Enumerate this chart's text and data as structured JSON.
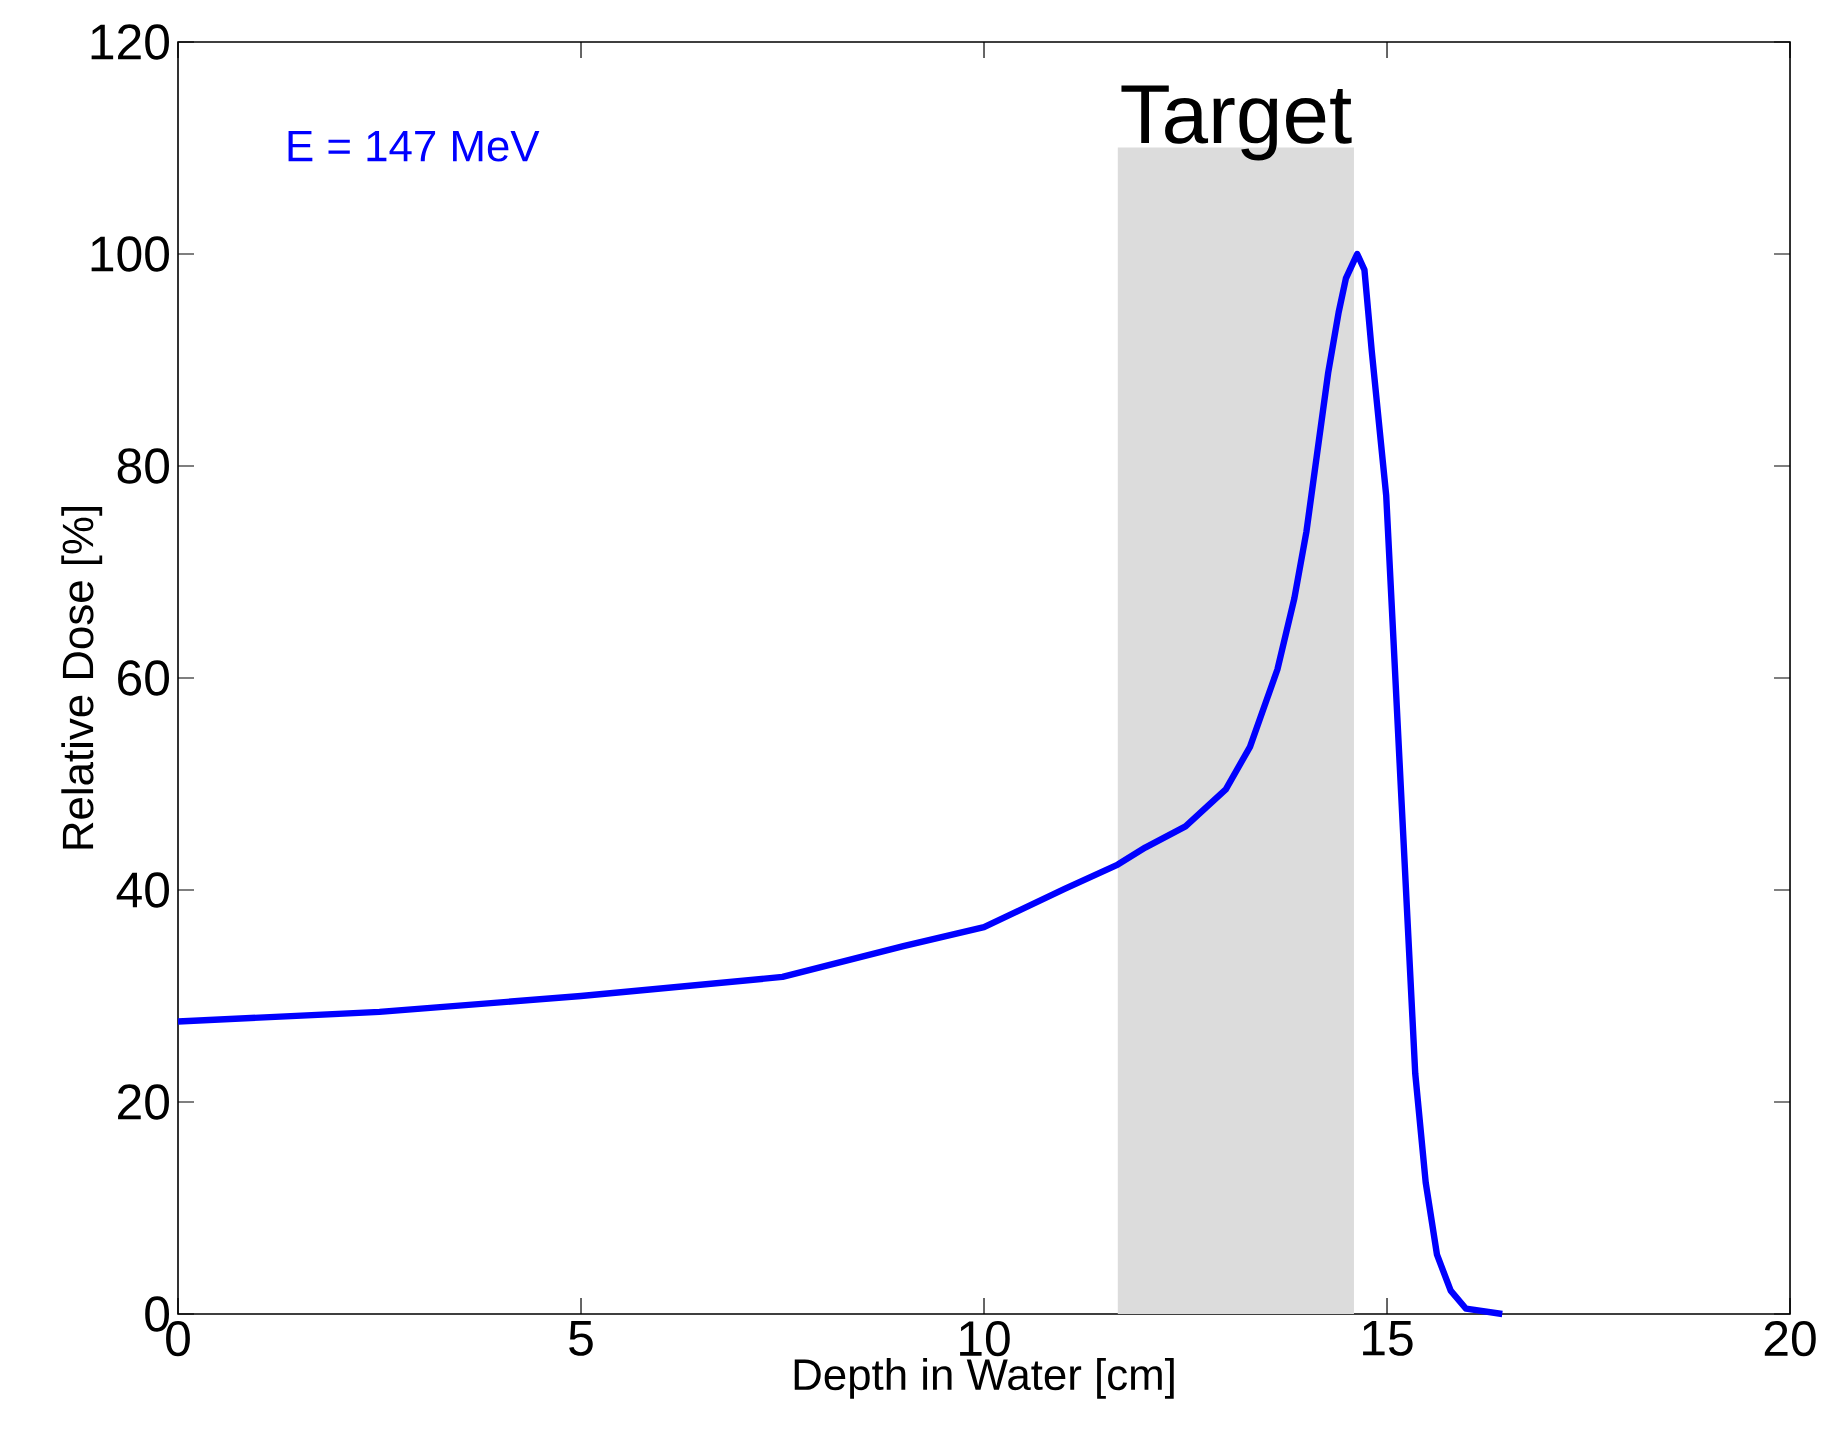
{
  "chart_data": {
    "type": "line",
    "xlabel": "Depth in Water [cm]",
    "ylabel": "Relative Dose [%]",
    "annotations": [
      "E = 147 MeV"
    ],
    "xlim": [
      0,
      20
    ],
    "ylim": [
      0,
      120
    ],
    "xticks": [
      0,
      5,
      10,
      15,
      20
    ],
    "yticks": [
      0,
      20,
      40,
      60,
      80,
      100,
      120
    ],
    "grid": false,
    "line_style": "solid",
    "bands": [
      {
        "axis": "x",
        "from": 11.66,
        "to": 14.59,
        "label": "Target",
        "color": "#dcdcdc"
      }
    ],
    "series": [
      {
        "color": "#0000ff",
        "x": [
          0,
          2.5,
          5,
          7.5,
          9,
          10,
          11,
          11.66,
          12,
          12.5,
          13,
          13.3,
          13.64,
          13.85,
          14.0,
          14.27,
          14.4,
          14.49,
          14.63,
          14.72,
          14.81,
          14.99,
          15.08,
          15.17,
          15.26,
          15.35,
          15.48,
          15.62,
          15.79,
          15.98,
          16.43
        ],
        "values": [
          27.6,
          28.5,
          30.0,
          31.8,
          34.7,
          36.5,
          40.1,
          42.4,
          44.0,
          46.0,
          49.5,
          53.5,
          60.8,
          67.5,
          73.8,
          88.8,
          94.5,
          97.7,
          100,
          98.5,
          90.9,
          77.2,
          63.6,
          49.9,
          36.3,
          22.7,
          12.4,
          5.6,
          2.2,
          0.5,
          0
        ]
      }
    ]
  }
}
